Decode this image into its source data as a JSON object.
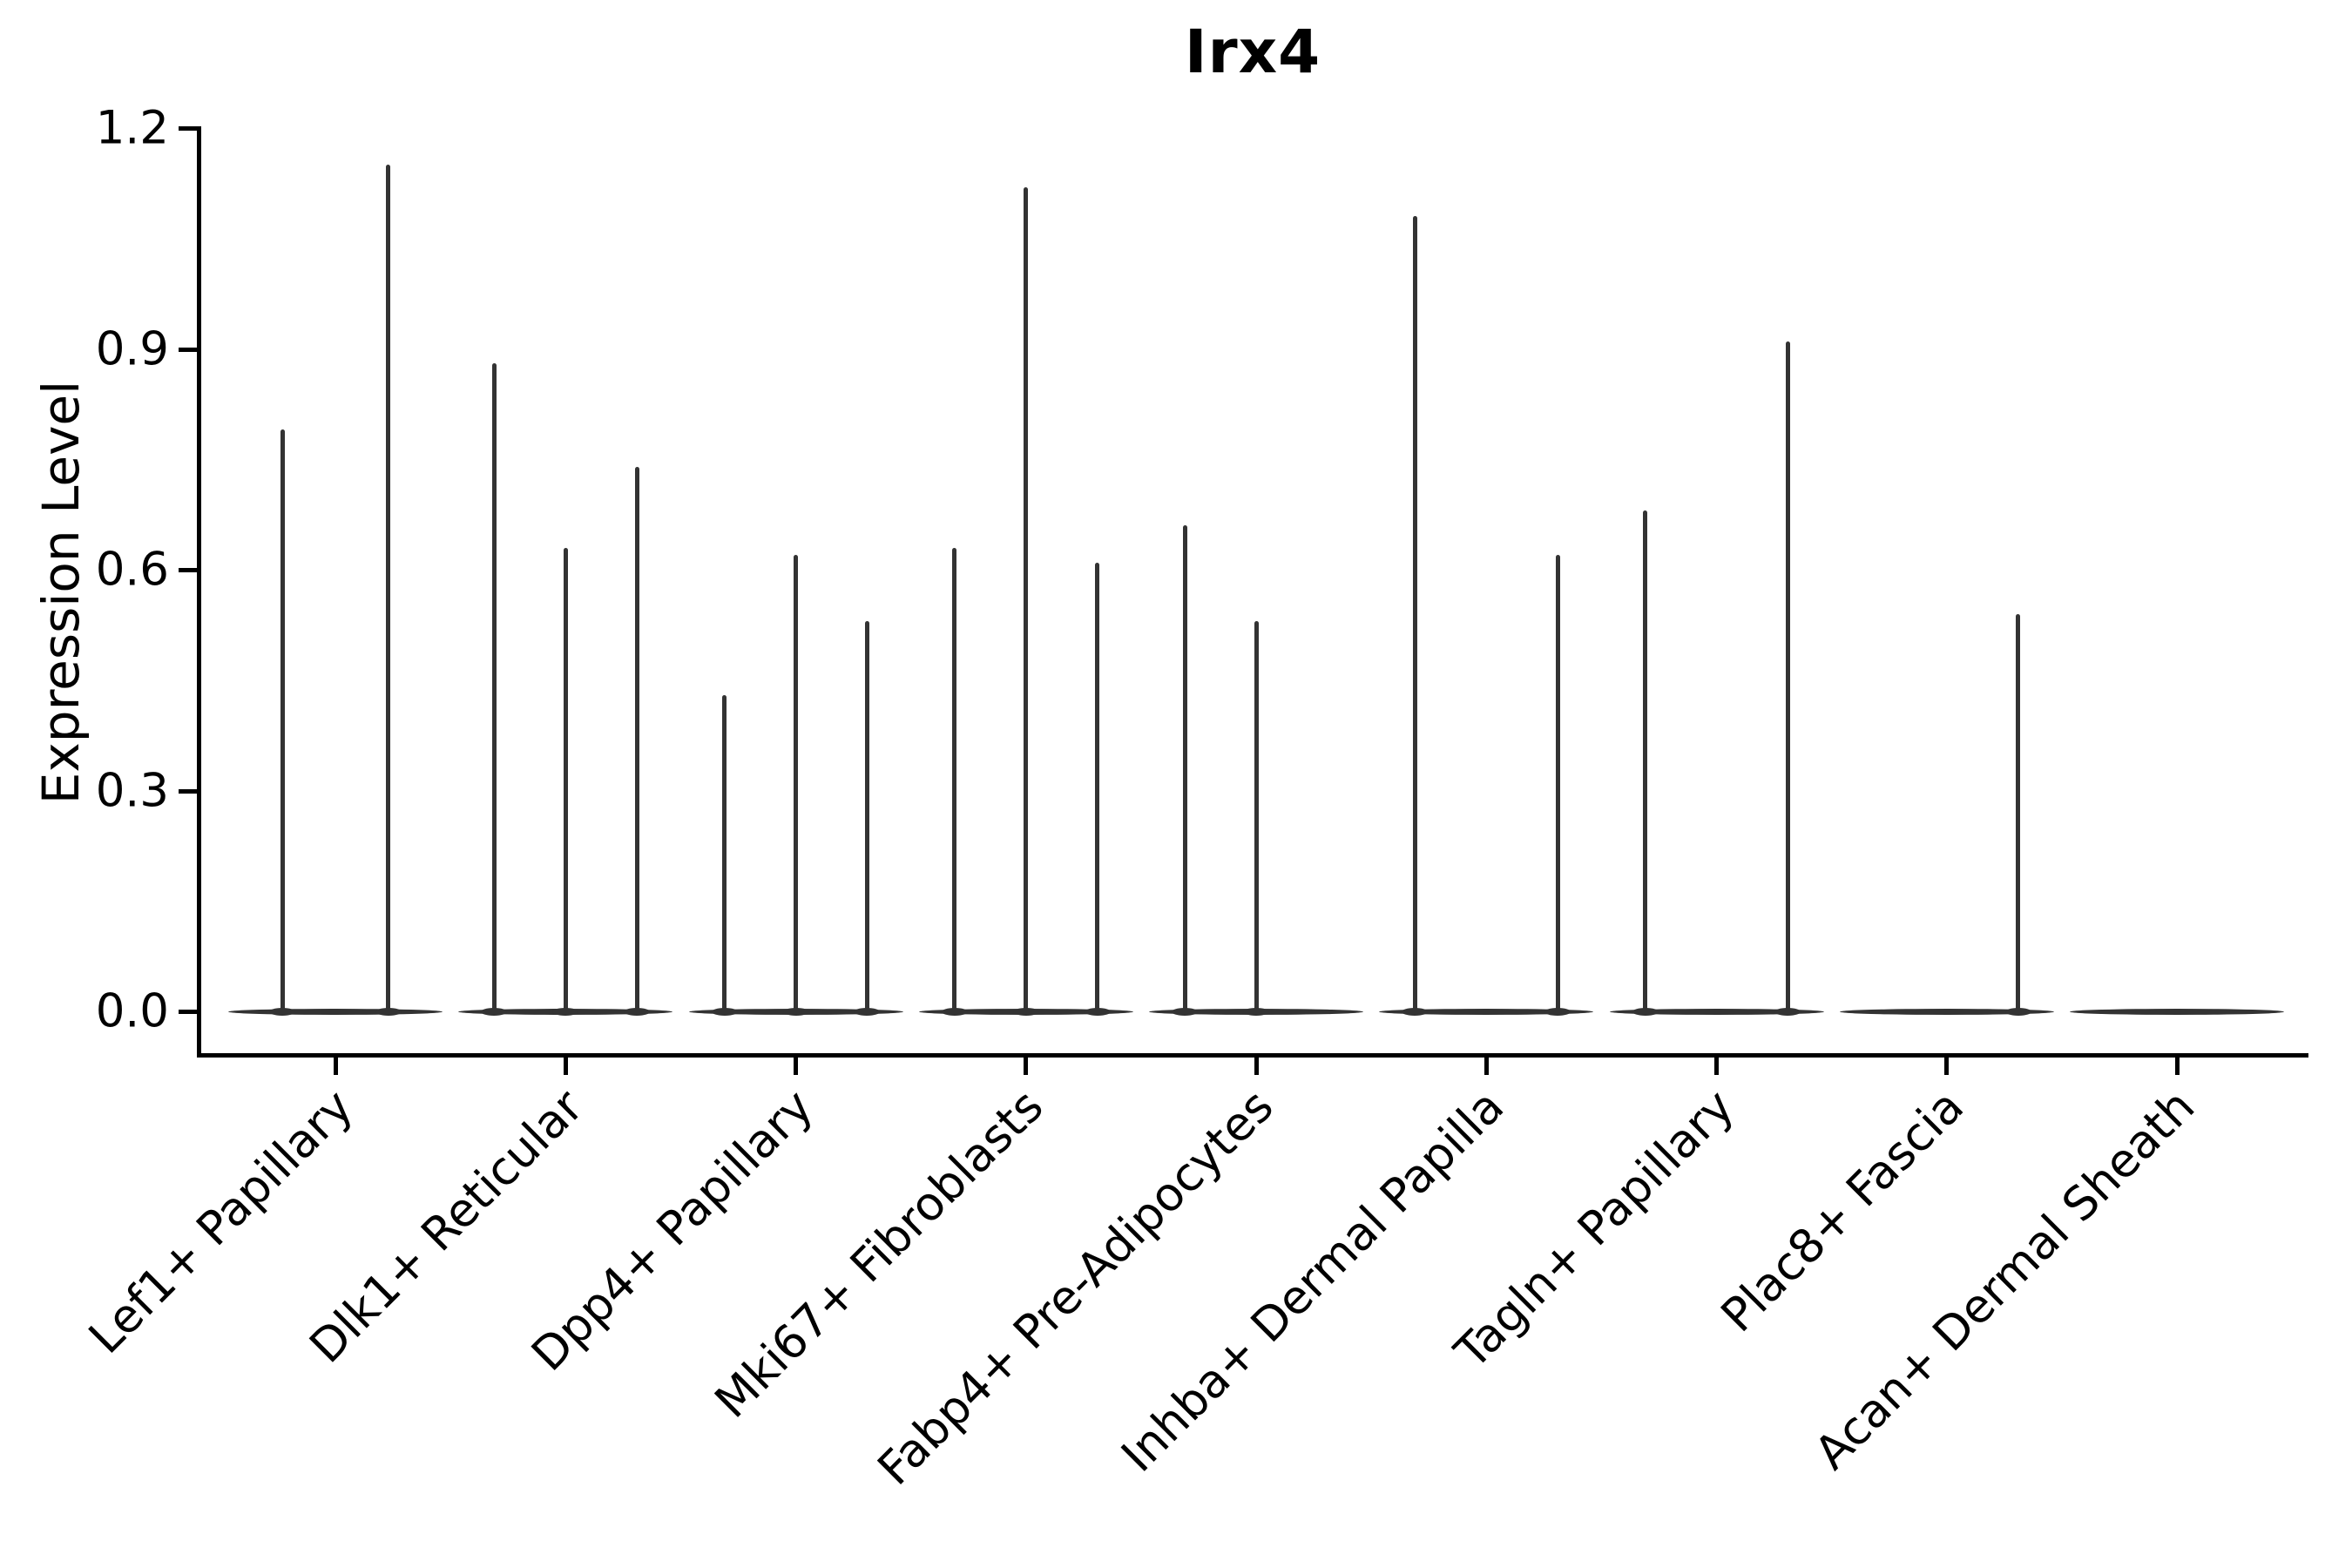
{
  "chart_data": {
    "type": "violin",
    "title": "Irx4",
    "ylabel": "Expression Level",
    "xlabel": "",
    "legend": "none",
    "grid": false,
    "background_color": "#ffffff",
    "axis_color": "#000000",
    "violin_color": "#333333",
    "ylim": [
      0,
      1.2
    ],
    "yticks": [
      {
        "label": "0.0",
        "value": 0.0
      },
      {
        "label": "0.3",
        "value": 0.3
      },
      {
        "label": "0.6",
        "value": 0.6
      },
      {
        "label": "0.9",
        "value": 0.9
      },
      {
        "label": "1.2",
        "value": 1.2
      }
    ],
    "categories": [
      "Lef1+ Papillary",
      "Dlk1+ Reticular",
      "Dpp4+ Papillary",
      "Mki67+ Fibroblasts",
      "Fabp4+ Pre-Adipocytes",
      "Inhba+ Dermal Papilla",
      "Tagln+ Papillary",
      "Plac8+ Fascia",
      "Acan+ Dermal Sheath"
    ],
    "violins": [
      {
        "category": "Lef1+ Papillary",
        "spikes": [
          {
            "offset": -0.23,
            "max": 0.79
          },
          {
            "offset": 0.23,
            "max": 1.15
          }
        ]
      },
      {
        "category": "Dlk1+ Reticular",
        "spikes": [
          {
            "offset": -0.31,
            "max": 0.88
          },
          {
            "offset": 0.0,
            "max": 0.63
          },
          {
            "offset": 0.31,
            "max": 0.74
          }
        ]
      },
      {
        "category": "Dpp4+ Papillary",
        "spikes": [
          {
            "offset": -0.31,
            "max": 0.43
          },
          {
            "offset": 0.0,
            "max": 0.62
          },
          {
            "offset": 0.31,
            "max": 0.53
          }
        ]
      },
      {
        "category": "Mki67+ Fibroblasts",
        "spikes": [
          {
            "offset": -0.31,
            "max": 0.63
          },
          {
            "offset": 0.0,
            "max": 1.12
          },
          {
            "offset": 0.31,
            "max": 0.61
          }
        ]
      },
      {
        "category": "Fabp4+ Pre-Adipocytes",
        "spikes": [
          {
            "offset": -0.31,
            "max": 0.66
          },
          {
            "offset": 0.0,
            "max": 0.53
          }
        ]
      },
      {
        "category": "Inhba+ Dermal Papilla",
        "spikes": [
          {
            "offset": -0.31,
            "max": 1.08
          },
          {
            "offset": 0.31,
            "max": 0.62
          }
        ]
      },
      {
        "category": "Tagln+ Papillary",
        "spikes": [
          {
            "offset": -0.31,
            "max": 0.68
          },
          {
            "offset": 0.31,
            "max": 0.91
          }
        ]
      },
      {
        "category": "Plac8+ Fascia",
        "spikes": [
          {
            "offset": 0.31,
            "max": 0.54
          }
        ]
      },
      {
        "category": "Acan+ Dermal Sheath",
        "spikes": []
      }
    ]
  }
}
